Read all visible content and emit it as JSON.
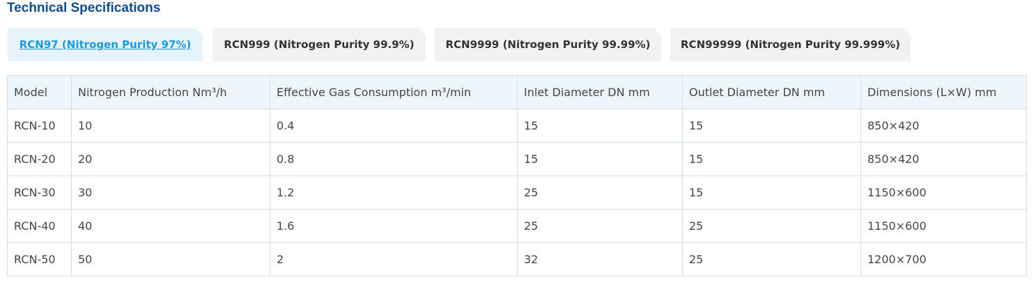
{
  "header": {
    "title": "Technical Specifications"
  },
  "tabs": [
    {
      "label": "RCN97 (Nitrogen Purity 97%)",
      "active": true
    },
    {
      "label": "RCN999 (Nitrogen Purity 99.9%)",
      "active": false
    },
    {
      "label": "RCN9999 (Nitrogen Purity 99.99%)",
      "active": false
    },
    {
      "label": "RCN99999 (Nitrogen Purity 99.999%)",
      "active": false
    }
  ],
  "table": {
    "columns": [
      "Model",
      "Nitrogen Production Nm³/h",
      "Effective Gas Consumption m³/min",
      "Inlet Diameter DN mm",
      "Outlet Diameter DN mm",
      "Dimensions (L×W) mm"
    ],
    "rows": [
      [
        "RCN-10",
        "10",
        "0.4",
        "15",
        "15",
        "850×420"
      ],
      [
        "RCN-20",
        "20",
        "0.8",
        "15",
        "15",
        "850×420"
      ],
      [
        "RCN-30",
        "30",
        "1.2",
        "25",
        "15",
        "1150×600"
      ],
      [
        "RCN-40",
        "40",
        "1.6",
        "25",
        "25",
        "1150×600"
      ],
      [
        "RCN-50",
        "50",
        "2",
        "32",
        "25",
        "1200×700"
      ]
    ]
  }
}
